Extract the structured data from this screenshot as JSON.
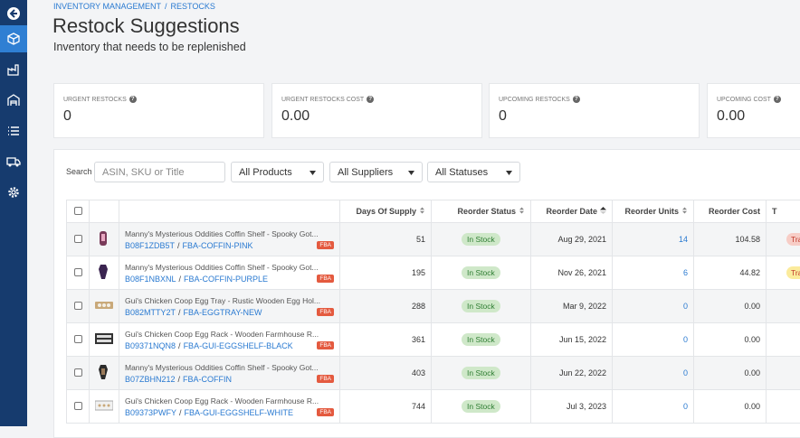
{
  "breadcrumb": {
    "items": [
      "INVENTORY MANAGEMENT",
      "RESTOCKS"
    ],
    "separator": "/"
  },
  "header": {
    "title": "Restock Suggestions",
    "subtitle": "Inventory that needs to be replenished"
  },
  "help_icon": "?",
  "stats": [
    {
      "label": "URGENT RESTOCKS",
      "value": "0"
    },
    {
      "label": "URGENT RESTOCKS COST",
      "value": "0.00"
    },
    {
      "label": "UPCOMING RESTOCKS",
      "value": "0"
    },
    {
      "label": "UPCOMING COST",
      "value": "0.00"
    }
  ],
  "filters": {
    "search_label": "Search",
    "search_placeholder": "ASIN, SKU or Title",
    "selects": [
      "All Products",
      "All Suppliers",
      "All Statuses"
    ]
  },
  "table": {
    "columns": [
      "Days Of Supply",
      "Reorder Status",
      "Reorder Date",
      "Reorder Units",
      "Reorder Cost",
      "T"
    ],
    "id_separator": "/",
    "channel_badge": "FBA",
    "rows": [
      {
        "title": "Manny's Mysterious Oddities Coffin Shelf - Spooky Got...",
        "asin": "B08F1ZDB5T",
        "sku": "FBA-COFFIN-PINK",
        "days": "51",
        "status": "In Stock",
        "date": "Aug 29, 2021",
        "units": "14",
        "cost": "104.58",
        "tag": {
          "text": "Tra",
          "color": "#f7cdc6"
        }
      },
      {
        "title": "Manny's Mysterious Oddities Coffin Shelf - Spooky Got...",
        "asin": "B08F1NBXNL",
        "sku": "FBA-COFFIN-PURPLE",
        "days": "195",
        "status": "In Stock",
        "date": "Nov 26, 2021",
        "units": "6",
        "cost": "44.82",
        "tag": {
          "text": "Tra",
          "color": "#fbeb9c"
        }
      },
      {
        "title": "Gui's Chicken Coop Egg Tray - Rustic Wooden Egg Hol...",
        "asin": "B082MTTY2T",
        "sku": "FBA-EGGTRAY-NEW",
        "days": "288",
        "status": "In Stock",
        "date": "Mar 9, 2022",
        "units": "0",
        "cost": "0.00"
      },
      {
        "title": "Gui's Chicken Coop Egg Rack - Wooden Farmhouse R...",
        "asin": "B09371NQN8",
        "sku": "FBA-GUI-EGGSHELF-BLACK",
        "days": "361",
        "status": "In Stock",
        "date": "Jun 15, 2022",
        "units": "0",
        "cost": "0.00"
      },
      {
        "title": "Manny's Mysterious Oddities Coffin Shelf - Spooky Got...",
        "asin": "B07ZBHN212",
        "sku": "FBA-COFFIN",
        "days": "403",
        "status": "In Stock",
        "date": "Jun 22, 2022",
        "units": "0",
        "cost": "0.00"
      },
      {
        "title": "Gui's Chicken Coop Egg Rack - Wooden Farmhouse R...",
        "asin": "B09373PWFY",
        "sku": "FBA-GUI-EGGSHELF-WHITE",
        "days": "744",
        "status": "In Stock",
        "date": "Jul 3, 2023",
        "units": "0",
        "cost": "0.00"
      }
    ]
  }
}
